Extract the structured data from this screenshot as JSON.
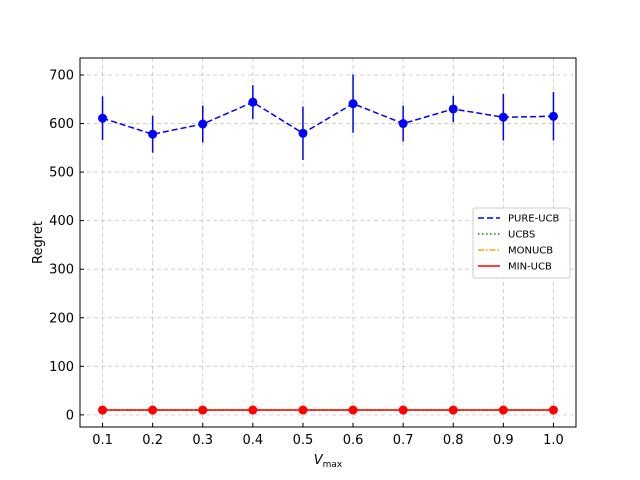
{
  "chart_data": {
    "type": "line",
    "xlabel_main": "V",
    "xlabel_sub": "max",
    "ylabel": "Regret",
    "x": [
      0.1,
      0.2,
      0.3,
      0.4,
      0.5,
      0.6,
      0.7,
      0.8,
      0.9,
      1.0
    ],
    "x_tick_labels": [
      "0.1",
      "0.2",
      "0.3",
      "0.4",
      "0.5",
      "0.6",
      "0.7",
      "0.8",
      "0.9",
      "1.0"
    ],
    "yticks": [
      0,
      100,
      200,
      300,
      400,
      500,
      600,
      700
    ],
    "y_tick_labels": [
      "0",
      "100",
      "200",
      "300",
      "400",
      "500",
      "600",
      "700"
    ],
    "xlim": [
      0.055,
      1.045
    ],
    "ylim": [
      -25,
      735
    ],
    "grid": true,
    "legend_position": "center-right",
    "series": [
      {
        "name": "PURE-UCB",
        "color": "#0000ff",
        "line_style": "dashed",
        "marker": "circle",
        "values": [
          611,
          578,
          599,
          644,
          580,
          641,
          600,
          630,
          613,
          615
        ],
        "error": [
          45,
          38,
          38,
          35,
          55,
          60,
          37,
          27,
          48,
          50
        ]
      },
      {
        "name": "UCBS",
        "color": "#008000",
        "line_style": "dotted",
        "marker": "none",
        "values": [
          10,
          10,
          10,
          10,
          10,
          10,
          10,
          10,
          10,
          10
        ],
        "error": [
          0,
          0,
          0,
          0,
          0,
          0,
          0,
          0,
          0,
          0
        ]
      },
      {
        "name": "MONUCB",
        "color": "#ffa500",
        "line_style": "dashdot",
        "marker": "none",
        "values": [
          10,
          10,
          10,
          10,
          10,
          10,
          10,
          10,
          10,
          10
        ],
        "error": [
          0,
          0,
          0,
          0,
          0,
          0,
          0,
          0,
          0,
          0
        ]
      },
      {
        "name": "MIN-UCB",
        "color": "#ff0000",
        "line_style": "solid",
        "marker": "circle",
        "values": [
          10,
          10,
          10,
          10,
          10,
          10,
          10,
          10,
          10,
          10
        ],
        "error": [
          0,
          0,
          0,
          0,
          0,
          0,
          0,
          0,
          0,
          0
        ]
      }
    ]
  }
}
